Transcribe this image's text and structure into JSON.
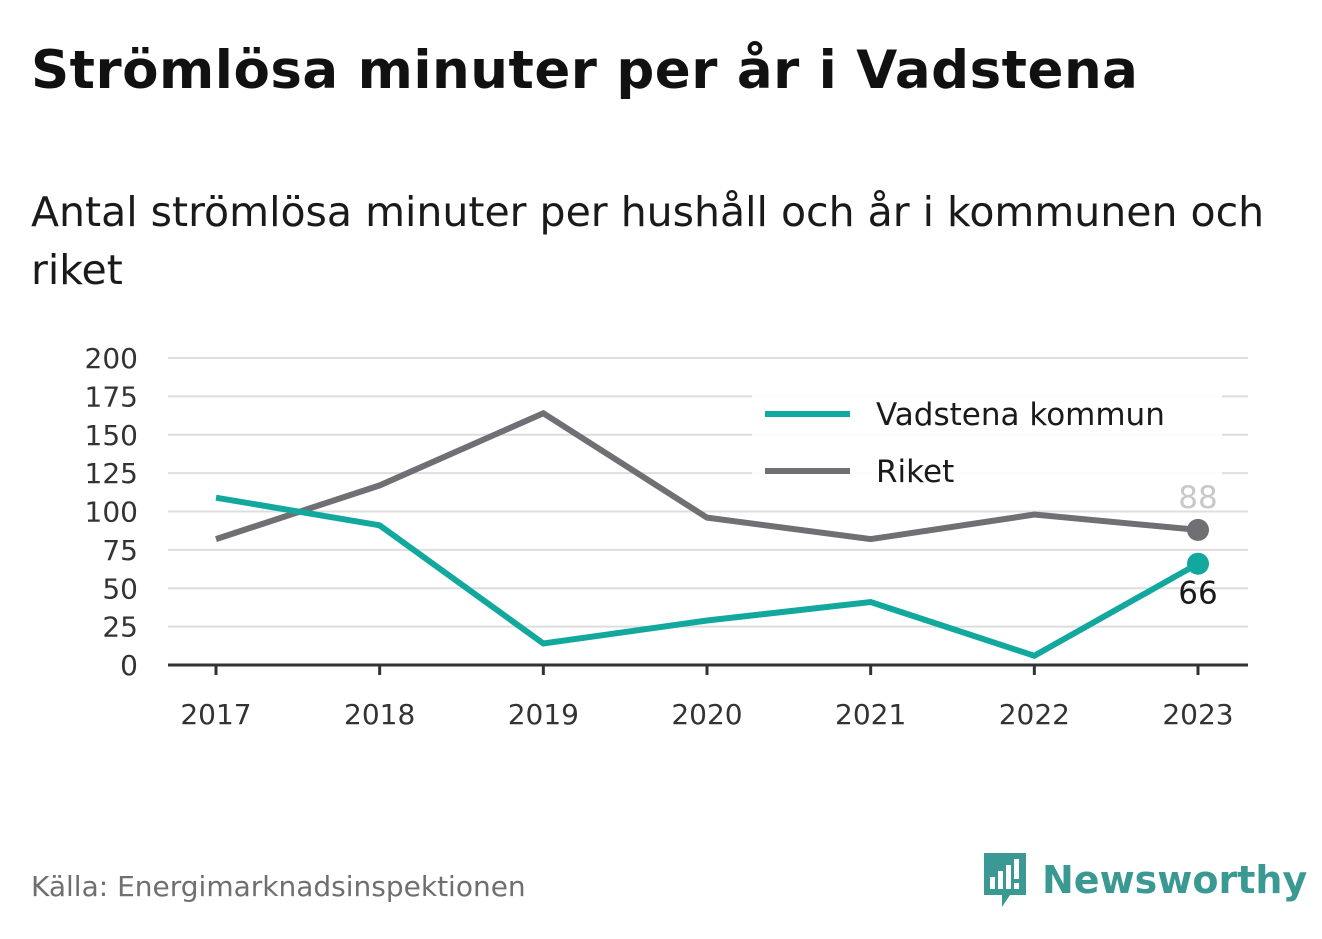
{
  "title": "Strömlösa minuter per år i Vadstena",
  "subtitle": "Antal strömlösa minuter per hushåll och år i kommunen och riket",
  "source": "Källa: Energimarknadsinspektionen",
  "brand": {
    "name": "Newsworthy",
    "icon": "newsworthy-chart-icon",
    "color": "#3a9a93"
  },
  "chart_data": {
    "type": "line",
    "title": "Strömlösa minuter per år i Vadstena",
    "subtitle": "Antal strömlösa minuter per hushåll och år i kommunen och riket",
    "x": [
      "2017",
      "2018",
      "2019",
      "2020",
      "2021",
      "2022",
      "2023"
    ],
    "ylim": [
      0,
      200
    ],
    "yticks": [
      0,
      25,
      50,
      75,
      100,
      125,
      150,
      175,
      200
    ],
    "grid": true,
    "legend": "top-right",
    "series": [
      {
        "name": "Vadstena kommun",
        "color": "#13a89e",
        "values": [
          109,
          91,
          14,
          29,
          41,
          6,
          66
        ],
        "end_label": "66",
        "end_label_color": "#1a1a1a"
      },
      {
        "name": "Riket",
        "color": "#6f6f74",
        "values": [
          82,
          117,
          164,
          96,
          82,
          98,
          88
        ],
        "end_label": "88",
        "end_label_color": "#c8c8c8"
      }
    ]
  }
}
